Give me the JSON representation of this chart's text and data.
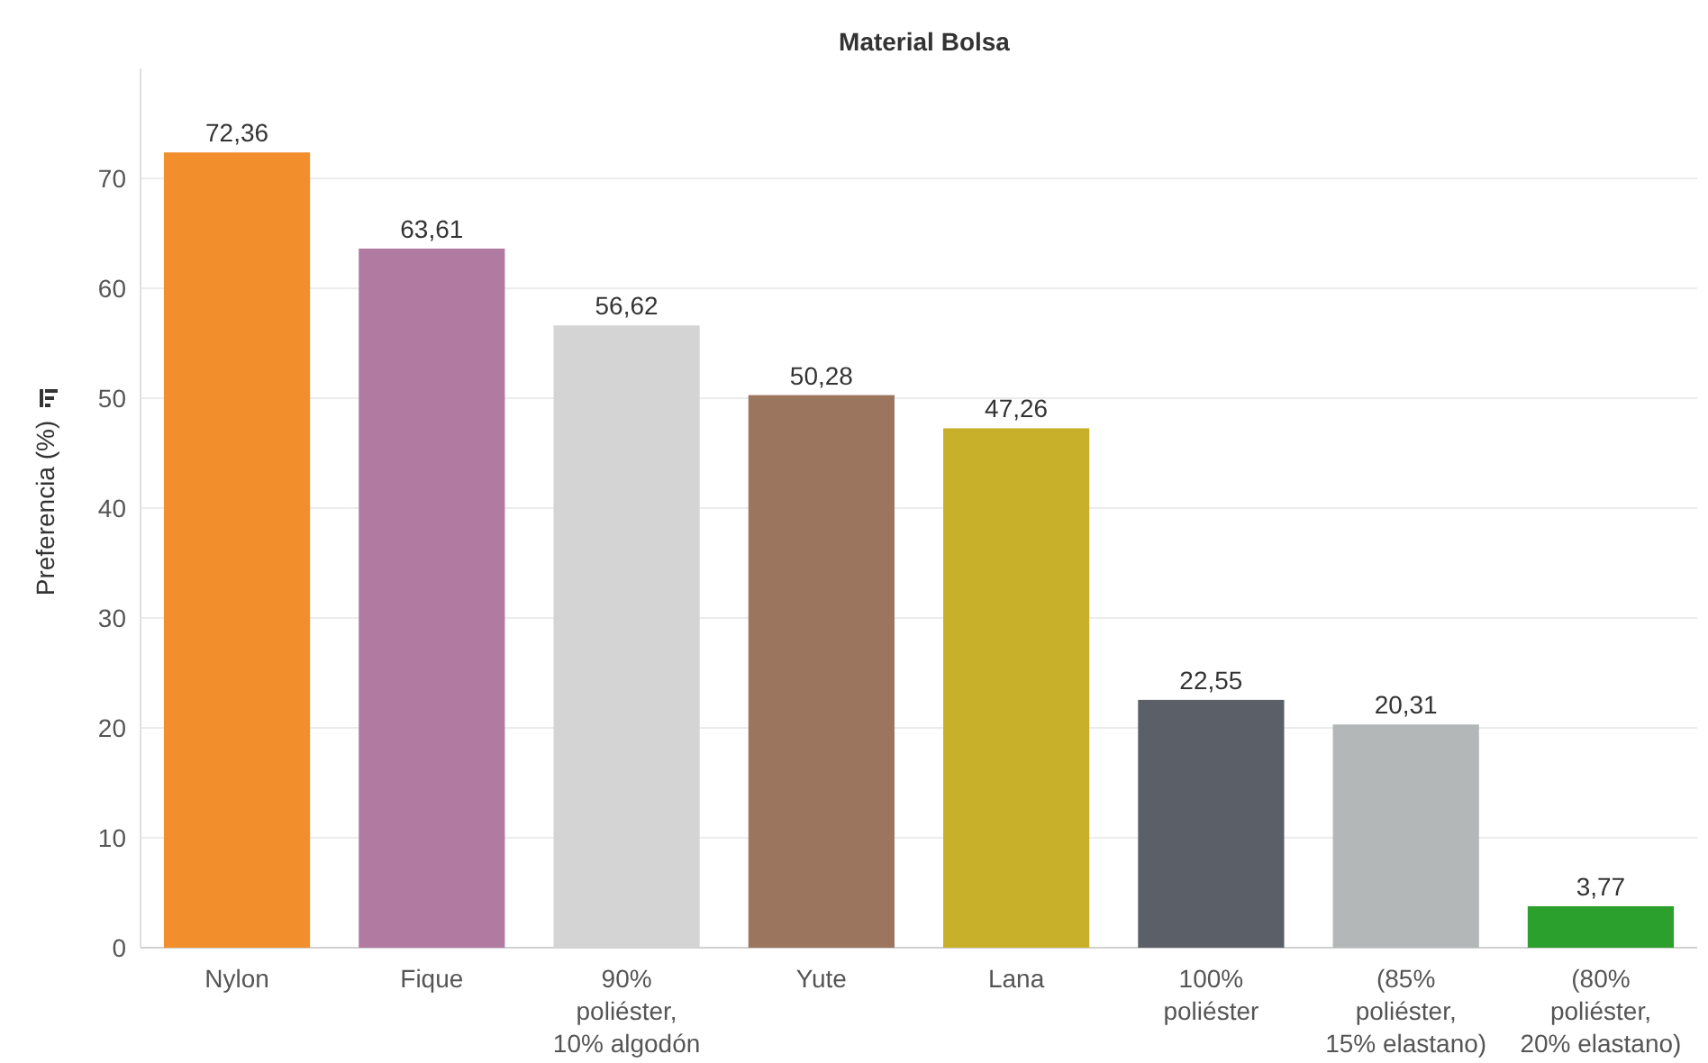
{
  "chart_data": {
    "type": "bar",
    "title": "Material Bolsa",
    "ylabel": "Preferencia (%)",
    "categories": [
      "Nylon",
      "Fique",
      "90% poliéster, 10% algodón",
      "Yute",
      "Lana",
      "100% poliéster",
      "(85% poliéster, 15% elastano)",
      "(80% poliéster, 20% elastano)"
    ],
    "values": [
      72.36,
      63.61,
      56.62,
      50.28,
      47.26,
      22.55,
      20.31,
      3.77
    ],
    "value_labels": [
      "72,36",
      "63,61",
      "56,62",
      "50,28",
      "47,26",
      "22,55",
      "20,31",
      "3,77"
    ],
    "colors": [
      "#f28e2b",
      "#b07aa1",
      "#d4d4d4",
      "#9c755f",
      "#c9b02a",
      "#5b5f68",
      "#b4b7b7",
      "#2ca02c"
    ],
    "ylim": [
      0,
      80
    ],
    "yticks": [
      0,
      10,
      20,
      30,
      40,
      50,
      60,
      70
    ],
    "grid": "y"
  }
}
